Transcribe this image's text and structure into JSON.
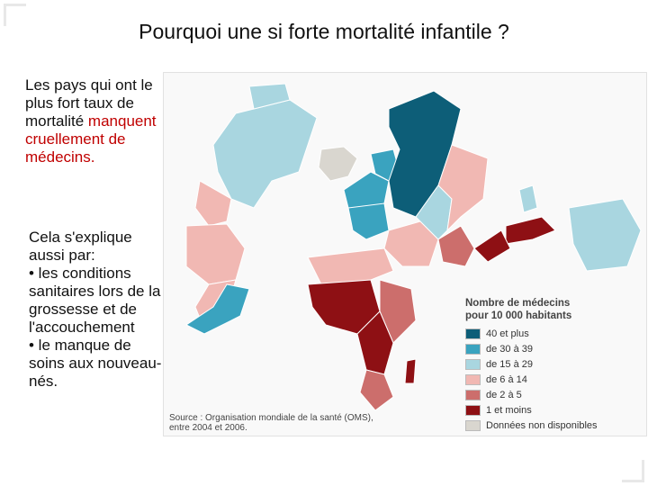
{
  "title": "Pourquoi une si forte mortalité infantile ?",
  "intro": {
    "line1": "Les pays qui ont le plus fort taux de mortalité",
    "red_text": "manquent cruellement de médecins."
  },
  "explanation": {
    "line1": "Cela s'explique aussi par:",
    "bullet1": "• les conditions sanitaires lors de la grossesse et de l'accouchement",
    "bullet2": "• le manque de soins aux nouveau-nés."
  },
  "map": {
    "legend_title_1": "Nombre de médecins",
    "legend_title_2": "pour 10 000 habitants",
    "legend": [
      {
        "label": "40 et plus",
        "color": "#0d5e78"
      },
      {
        "label": "de 30 à 39",
        "color": "#3aa3bf"
      },
      {
        "label": "de 15 à 29",
        "color": "#a9d6e0"
      },
      {
        "label": "de 6 à 14",
        "color": "#f1b8b3"
      },
      {
        "label": "de 2 à 5",
        "color": "#cc6e6c"
      },
      {
        "label": "1 et moins",
        "color": "#8e1014"
      },
      {
        "label": "Données non disponibles",
        "color": "#d9d6cf"
      }
    ],
    "source_line1": "Source : Organisation mondiale de la santé (OMS),",
    "source_line2": "entre 2004 et 2006."
  }
}
